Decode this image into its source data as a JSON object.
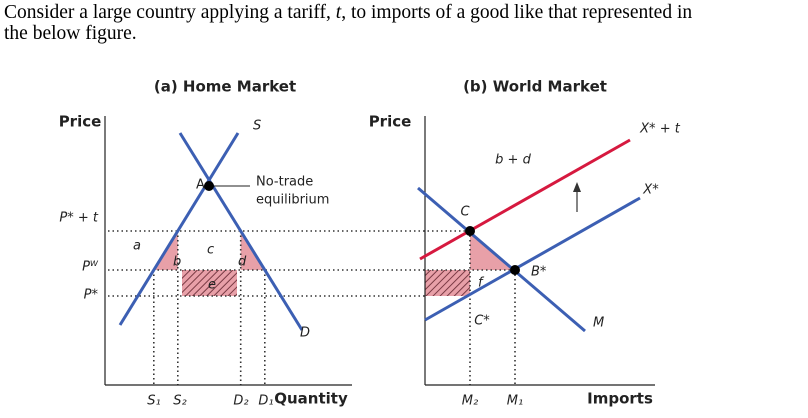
{
  "question": {
    "line1": [
      "Consider a large country applying a tariff, ",
      "t",
      ", to imports of a good like that represented in"
    ],
    "line2": "the below figure."
  },
  "home_market": {
    "title": "(a) Home Market",
    "y_label": "Price",
    "x_label": "Quantity",
    "supply": "S",
    "demand": "D",
    "point": "A",
    "annotation": [
      "No-trade",
      "equilibrium"
    ],
    "price_levels": [
      "P* + t",
      "Pᵂ",
      "P*"
    ],
    "areas": [
      "a",
      "b",
      "c",
      "d",
      "e"
    ],
    "quantities": [
      "S₁",
      "S₂",
      "D₂",
      "D₁"
    ]
  },
  "world_market": {
    "title": "(b) World Market",
    "y_label": "Price",
    "x_label": "Imports",
    "curves": [
      "X* + t",
      "X*",
      "M"
    ],
    "points": [
      "C",
      "C*",
      "B*"
    ],
    "areas": [
      "b + d",
      "f"
    ],
    "quantities": [
      "M₂",
      "M₁"
    ]
  }
}
